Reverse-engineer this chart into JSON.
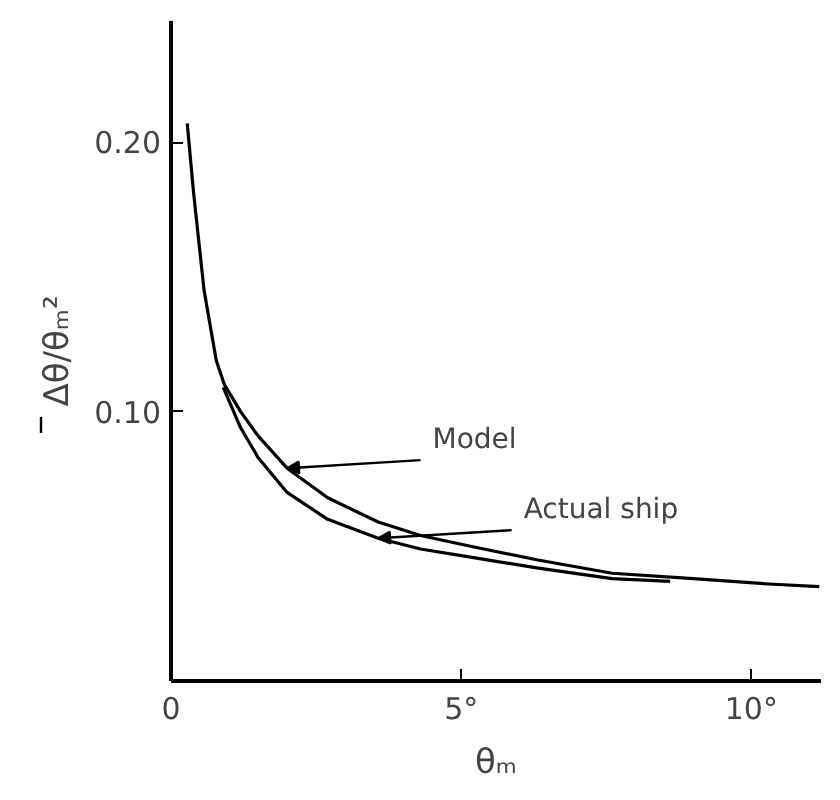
{
  "chart_data": {
    "type": "line",
    "xlabel": "θₘ",
    "ylabel": "Δθ/θₘ²",
    "xlim": [
      0,
      11.2
    ],
    "ylim": [
      0,
      0.245
    ],
    "xticks": [
      {
        "value": 0,
        "label": "0"
      },
      {
        "value": 5,
        "label": "5°"
      },
      {
        "value": 10,
        "label": "10°"
      }
    ],
    "yticks": [
      {
        "value": 0.1,
        "label": "0.10"
      },
      {
        "value": 0.2,
        "label": "0.20"
      }
    ],
    "grid": false,
    "marker": "none",
    "line_style": "solid",
    "series": [
      {
        "color": "#000000",
        "x": [
          0.28,
          0.39,
          0.57,
          0.78,
          0.92,
          1.2,
          1.5,
          2.0,
          2.7,
          3.57,
          4.3,
          5.16,
          6.3,
          7.6,
          9.0,
          10.3,
          11.17
        ],
        "values": [
          0.207,
          0.181,
          0.145,
          0.119,
          0.11,
          0.1,
          0.091,
          0.079,
          0.068,
          0.059,
          0.054,
          0.05,
          0.045,
          0.04,
          0.038,
          0.036,
          0.035
        ]
      },
      {
        "color": "#000000",
        "x": [
          0.9,
          1.2,
          1.5,
          2.0,
          2.7,
          3.57,
          4.3,
          5.16,
          6.3,
          7.6,
          8.6
        ],
        "values": [
          0.109,
          0.094,
          0.083,
          0.07,
          0.06,
          0.053,
          0.049,
          0.046,
          0.042,
          0.038,
          0.037
        ]
      }
    ],
    "annotations": [
      {
        "text": "Model",
        "x": 2.0,
        "y": 0.079
      },
      {
        "text": "Actual ship",
        "x": 3.57,
        "y": 0.053
      }
    ]
  }
}
